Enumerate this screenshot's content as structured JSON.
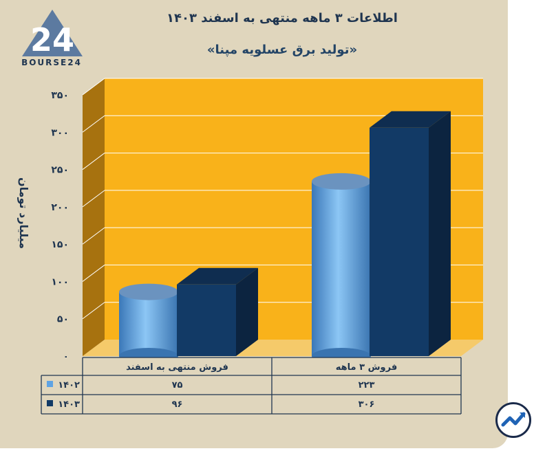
{
  "branding": {
    "name": "BOURSE24",
    "logo_number": "24"
  },
  "header": {
    "title": "اطلاعات ۳ ماهه منتهی به اسفند ۱۴۰۳",
    "subtitle": "«تولید برق عسلویه مپنا»"
  },
  "chart_data": {
    "type": "bar",
    "ylabel": "میلیارد تومان",
    "ylim": [
      0,
      350
    ],
    "yticks": [
      "۰",
      "۵۰",
      "۱۰۰",
      "۱۵۰",
      "۲۰۰",
      "۲۵۰",
      "۳۰۰",
      "۳۵۰"
    ],
    "categories": [
      "فروش منتهی به  اسفند",
      "فروش ۳ ماهه"
    ],
    "series": [
      {
        "name": "۱۴۰۲",
        "values": [
          75,
          223
        ],
        "value_labels": [
          "۷۵",
          "۲۲۳"
        ],
        "color": "#5fa3e3"
      },
      {
        "name": "۱۴۰۳",
        "values": [
          96,
          306
        ],
        "value_labels": [
          "۹۶",
          "۳۰۶"
        ],
        "color": "#123a66"
      }
    ],
    "grid": true,
    "colors": {
      "plot_bg": "#f9b21a",
      "side_wall": "#a7720f",
      "floor": "#f5ca6a"
    }
  }
}
